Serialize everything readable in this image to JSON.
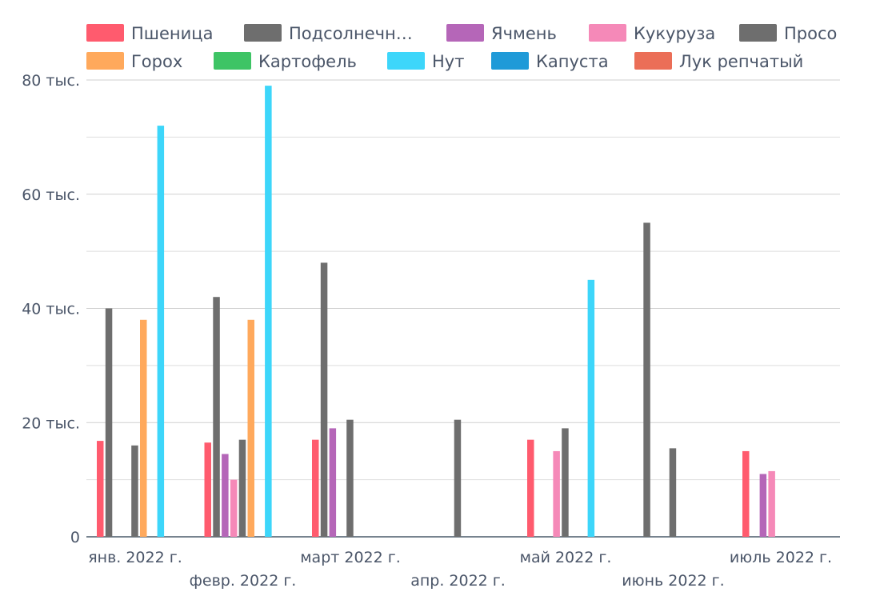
{
  "chart_data": {
    "type": "bar",
    "y_tick_labels": [
      "0",
      "20 тыс.",
      "40 тыс.",
      "60 тыс.",
      "80 тыс."
    ],
    "y_ticks": [
      0,
      20000,
      40000,
      60000,
      80000
    ],
    "ylim": [
      0,
      80000
    ],
    "grid": true,
    "legend_position": "top",
    "categories": [
      "янв. 2022 г.",
      "февр. 2022 г.",
      "март 2022 г.",
      "апр. 2022 г.",
      "май 2022 г.",
      "июнь 2022 г.",
      "июль 2022 г."
    ],
    "series": [
      {
        "name": "Пшеница",
        "color": "#ff5b6e",
        "values": [
          16800,
          16500,
          17000,
          null,
          17000,
          null,
          15000
        ]
      },
      {
        "name": "Подсолнечн…",
        "color": "#6e6e6e",
        "values": [
          40000,
          42000,
          48000,
          null,
          null,
          55000,
          null
        ]
      },
      {
        "name": "Ячмень",
        "color": "#b566b8",
        "values": [
          null,
          14500,
          19000,
          null,
          null,
          null,
          11000
        ]
      },
      {
        "name": "Кукуруза",
        "color": "#f589b8",
        "values": [
          null,
          10000,
          null,
          null,
          15000,
          null,
          11500
        ]
      },
      {
        "name": "Просо",
        "color": "#6e6e6e",
        "values": [
          16000,
          17000,
          20500,
          20500,
          19000,
          15500,
          null
        ]
      },
      {
        "name": "Горох",
        "color": "#ffa95c",
        "values": [
          38000,
          38000,
          null,
          null,
          null,
          null,
          null
        ]
      },
      {
        "name": "Картофель",
        "color": "#3ec465",
        "values": [
          null,
          null,
          null,
          null,
          null,
          null,
          null
        ]
      },
      {
        "name": "Нут",
        "color": "#3dd6fa",
        "values": [
          72000,
          79000,
          null,
          null,
          45000,
          null,
          null
        ]
      },
      {
        "name": "Капуста",
        "color": "#1f9ad8",
        "values": [
          null,
          null,
          null,
          null,
          null,
          null,
          null
        ]
      },
      {
        "name": "Лук репчатый",
        "color": "#eb6e57",
        "values": [
          null,
          null,
          null,
          null,
          null,
          null,
          null
        ]
      }
    ]
  }
}
